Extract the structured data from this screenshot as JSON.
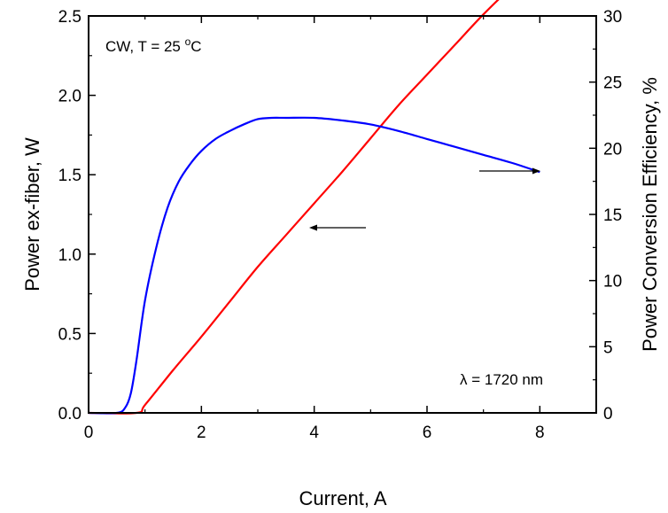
{
  "chart_data": {
    "type": "line",
    "title": "",
    "xlabel": "Current, A",
    "ylabel": "Power ex-fiber, W",
    "y2label": "Power Conversion Efficiency, %",
    "xlim": [
      0,
      9
    ],
    "ylim": [
      0,
      2.5
    ],
    "y2lim": [
      0,
      30
    ],
    "x_ticks": [
      "0",
      "2",
      "4",
      "6",
      "8"
    ],
    "y_ticks": [
      "0.0",
      "0.5",
      "1.0",
      "1.5",
      "2.0",
      "2.5"
    ],
    "y2_ticks": [
      "0",
      "5",
      "10",
      "15",
      "20",
      "25",
      "30"
    ],
    "grid": false,
    "annotations": {
      "conditions_main": "CW, T = 25 ",
      "conditions_sup": "o",
      "conditions_unit": "C",
      "wavelength": "λ = 1720 nm"
    },
    "series": [
      {
        "axis": "left",
        "color": "#ff0000",
        "x": [
          0,
          0.85,
          1.0,
          1.5,
          2.0,
          2.5,
          3.0,
          3.5,
          4.0,
          4.5,
          5.0,
          5.5,
          6.0,
          6.5,
          7.0,
          7.5,
          8.0
        ],
        "values": [
          0.0,
          0.0,
          0.05,
          0.27,
          0.48,
          0.7,
          0.92,
          1.12,
          1.32,
          1.52,
          1.73,
          1.94,
          2.13,
          2.32,
          2.51,
          2.68,
          2.82
        ]
      },
      {
        "axis": "right",
        "color": "#0000ff",
        "x": [
          0,
          0.5,
          0.65,
          0.75,
          0.85,
          1.0,
          1.2,
          1.4,
          1.6,
          1.8,
          2.0,
          2.25,
          2.5,
          2.75,
          3.0,
          3.25,
          3.5,
          4.0,
          4.5,
          5.0,
          5.5,
          6.0,
          6.5,
          7.0,
          7.5,
          8.0
        ],
        "values": [
          0,
          0,
          0.4,
          1.5,
          4.0,
          8.5,
          12.5,
          15.5,
          17.5,
          18.8,
          19.8,
          20.7,
          21.3,
          21.8,
          22.2,
          22.3,
          22.3,
          22.3,
          22.1,
          21.8,
          21.3,
          20.7,
          20.1,
          19.5,
          18.9,
          18.2
        ]
      }
    ]
  }
}
